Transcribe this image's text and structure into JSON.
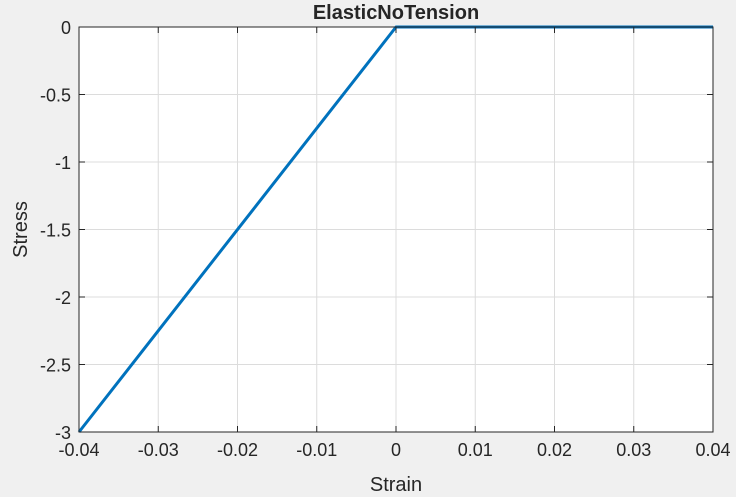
{
  "chart_data": {
    "type": "line",
    "title": "ElasticNoTension",
    "xlabel": "Strain",
    "ylabel": "Stress",
    "xlim": [
      -0.04,
      0.04
    ],
    "ylim": [
      -3,
      0
    ],
    "xticks": [
      -0.04,
      -0.03,
      -0.02,
      -0.01,
      0,
      0.01,
      0.02,
      0.03,
      0.04
    ],
    "xtick_labels": [
      "-0.04",
      "-0.03",
      "-0.02",
      "-0.01",
      "0",
      "0.01",
      "0.02",
      "0.03",
      "0.04"
    ],
    "yticks": [
      0,
      -0.5,
      -1,
      -1.5,
      -2,
      -2.5,
      -3
    ],
    "ytick_labels": [
      "0",
      "-0.5",
      "-1",
      "-1.5",
      "-2",
      "-2.5",
      "-3"
    ],
    "grid": true,
    "legend": "none",
    "series": [
      {
        "color": "#0072bd",
        "x": [
          -0.04,
          0,
          0.04
        ],
        "y": [
          -3,
          0,
          0
        ]
      }
    ]
  }
}
